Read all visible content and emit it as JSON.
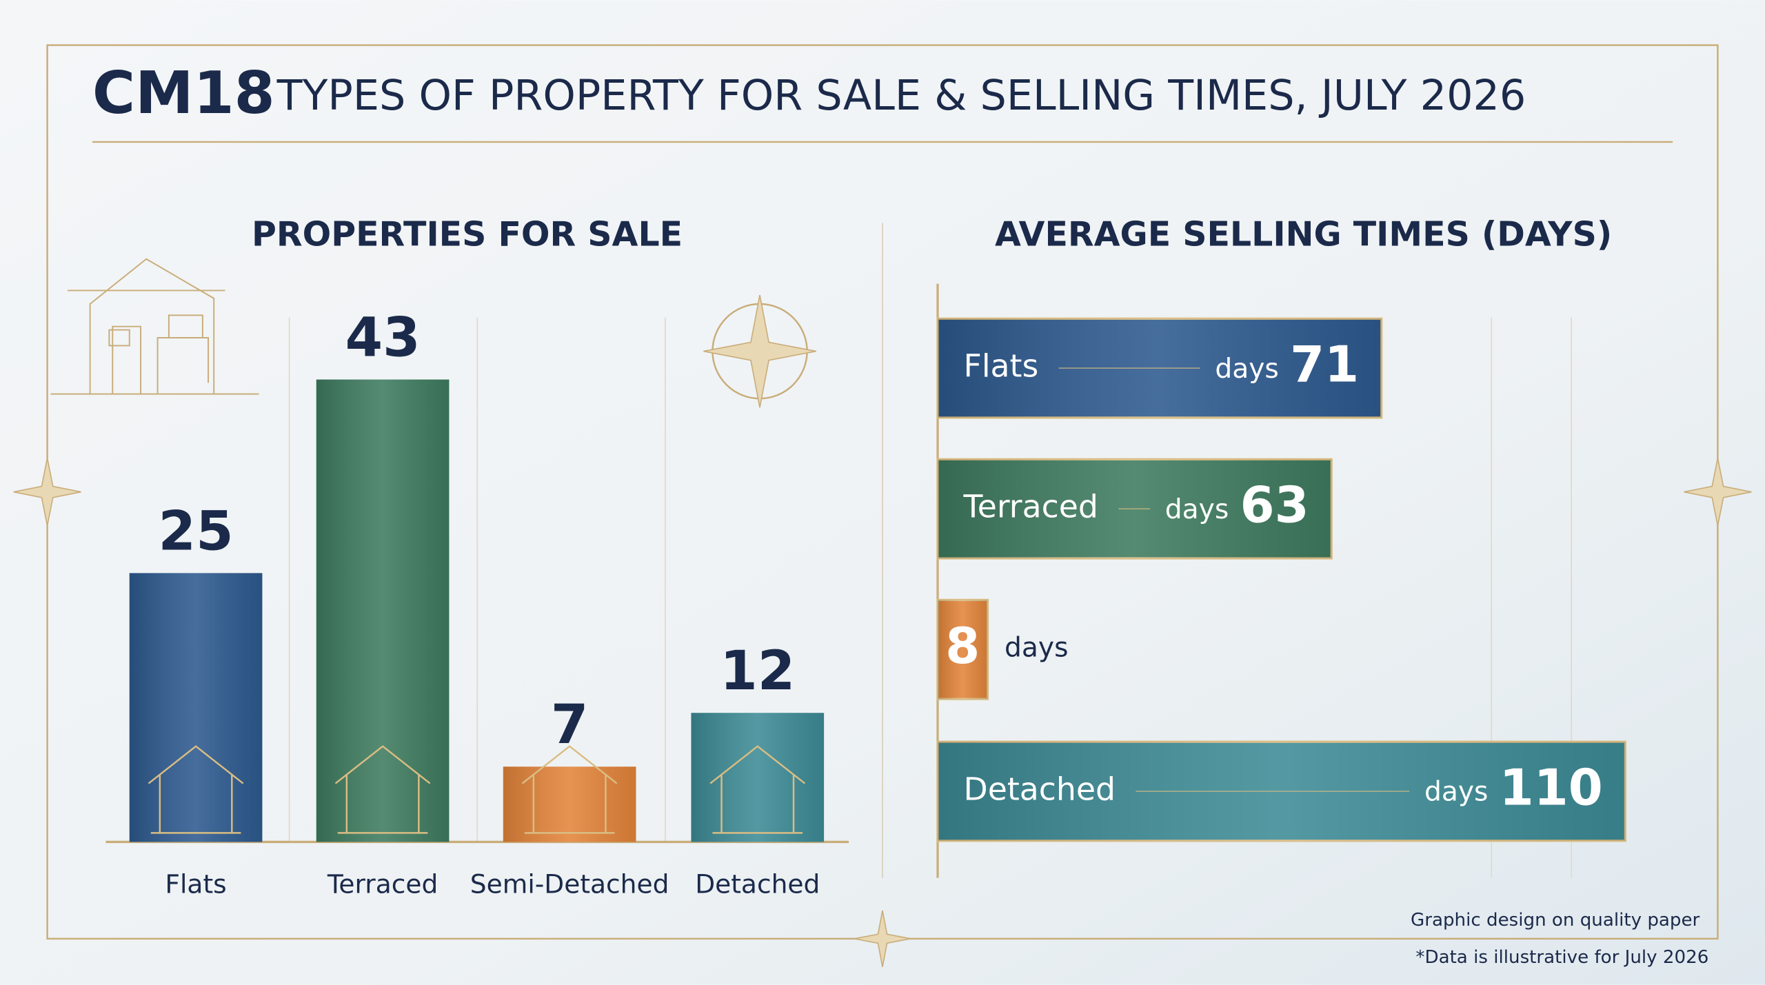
{
  "header": {
    "code": "CM18",
    "title": "TYPES OF PROPERTY FOR SALE & SELLING TIMES, JULY 2026"
  },
  "chart_data": [
    {
      "type": "bar",
      "title": "PROPERTIES FOR SALE",
      "categories": [
        "Flats",
        "Terraced",
        "Semi-Detached",
        "Detached"
      ],
      "values": [
        25,
        43,
        7,
        12
      ],
      "colors": [
        "#2d5a8f",
        "#3e7b5f",
        "#e3843a",
        "#3d8b96"
      ],
      "ylim": [
        0,
        45
      ]
    },
    {
      "type": "hbar",
      "title": "AVERAGE SELLING TIMES (DAYS)",
      "categories": [
        "Flats",
        "Terraced",
        null,
        "Detached"
      ],
      "values": [
        71,
        63,
        8,
        110
      ],
      "unit_label": "days",
      "colors": [
        "#2d5a8f",
        "#3e7b5f",
        "#e3843a",
        "#3d8b96"
      ],
      "xlim": [
        0,
        112
      ]
    }
  ],
  "footer": {
    "note": "Graphic design on quality paper",
    "disclaimer": "*Data is illustrative for July 2026"
  }
}
